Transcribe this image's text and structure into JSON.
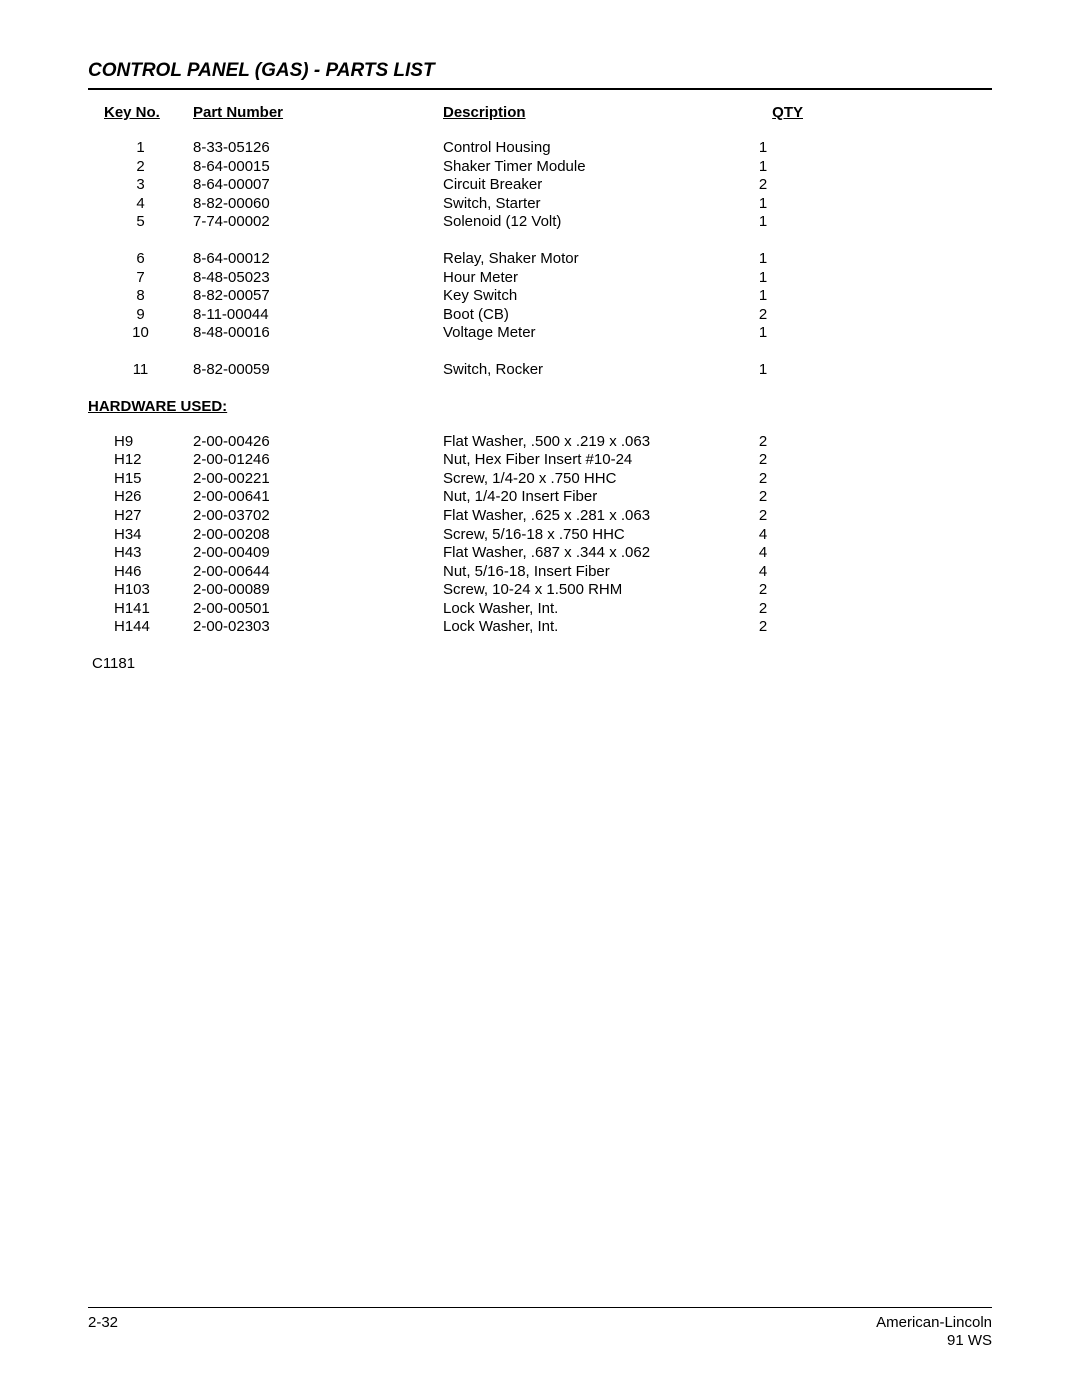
{
  "title": "CONTROL PANEL (GAS) - PARTS LIST",
  "headers": {
    "key": "Key No.",
    "part": "Part Number",
    "desc": "Description",
    "qty": "QTY"
  },
  "parts_groups": [
    [
      {
        "key": "1",
        "part": "8-33-05126",
        "desc": "Control Housing",
        "qty": "1"
      },
      {
        "key": "2",
        "part": "8-64-00015",
        "desc": "Shaker Timer Module",
        "qty": "1"
      },
      {
        "key": "3",
        "part": "8-64-00007",
        "desc": "Circuit Breaker",
        "qty": "2"
      },
      {
        "key": "4",
        "part": "8-82-00060",
        "desc": "Switch, Starter",
        "qty": "1"
      },
      {
        "key": "5",
        "part": "7-74-00002",
        "desc": "Solenoid (12 Volt)",
        "qty": "1"
      }
    ],
    [
      {
        "key": "6",
        "part": "8-64-00012",
        "desc": "Relay, Shaker Motor",
        "qty": "1"
      },
      {
        "key": "7",
        "part": "8-48-05023",
        "desc": "Hour Meter",
        "qty": "1"
      },
      {
        "key": "8",
        "part": "8-82-00057",
        "desc": "Key Switch",
        "qty": "1"
      },
      {
        "key": "9",
        "part": "8-11-00044",
        "desc": "Boot (CB)",
        "qty": "2"
      },
      {
        "key": "10",
        "part": "8-48-00016",
        "desc": "Voltage Meter",
        "qty": "1"
      }
    ],
    [
      {
        "key": "11",
        "part": "8-82-00059",
        "desc": "Switch, Rocker",
        "qty": "1"
      }
    ]
  ],
  "hardware_label": "HARDWARE USED:",
  "hardware_rows": [
    {
      "key": "H9",
      "part": "2-00-00426",
      "desc": "Flat Washer, .500 x .219 x .063",
      "qty": "2"
    },
    {
      "key": "H12",
      "part": "2-00-01246",
      "desc": "Nut, Hex Fiber Insert #10-24",
      "qty": "2"
    },
    {
      "key": "H15",
      "part": "2-00-00221",
      "desc": "Screw, 1/4-20 x .750 HHC",
      "qty": "2"
    },
    {
      "key": "H26",
      "part": "2-00-00641",
      "desc": "Nut, 1/4-20 Insert Fiber",
      "qty": "2"
    },
    {
      "key": "H27",
      "part": "2-00-03702",
      "desc": "Flat Washer, .625 x .281 x .063",
      "qty": "2"
    },
    {
      "key": "H34",
      "part": "2-00-00208",
      "desc": "Screw, 5/16-18 x .750 HHC",
      "qty": "4"
    },
    {
      "key": "H43",
      "part": "2-00-00409",
      "desc": "Flat Washer, .687 x .344 x .062",
      "qty": "4"
    },
    {
      "key": "H46",
      "part": "2-00-00644",
      "desc": "Nut, 5/16-18, Insert Fiber",
      "qty": "4"
    },
    {
      "key": "H103",
      "part": "2-00-00089",
      "desc": "Screw, 10-24 x 1.500 RHM",
      "qty": "2"
    },
    {
      "key": "H141",
      "part": "2-00-00501",
      "desc": "Lock Washer, Int.",
      "qty": "2"
    },
    {
      "key": "H144",
      "part": "2-00-02303",
      "desc": "Lock Washer, Int.",
      "qty": "2"
    }
  ],
  "code": "C1181",
  "footer": {
    "left": "2-32",
    "right1": "American-Lincoln",
    "right2": "91 WS"
  }
}
